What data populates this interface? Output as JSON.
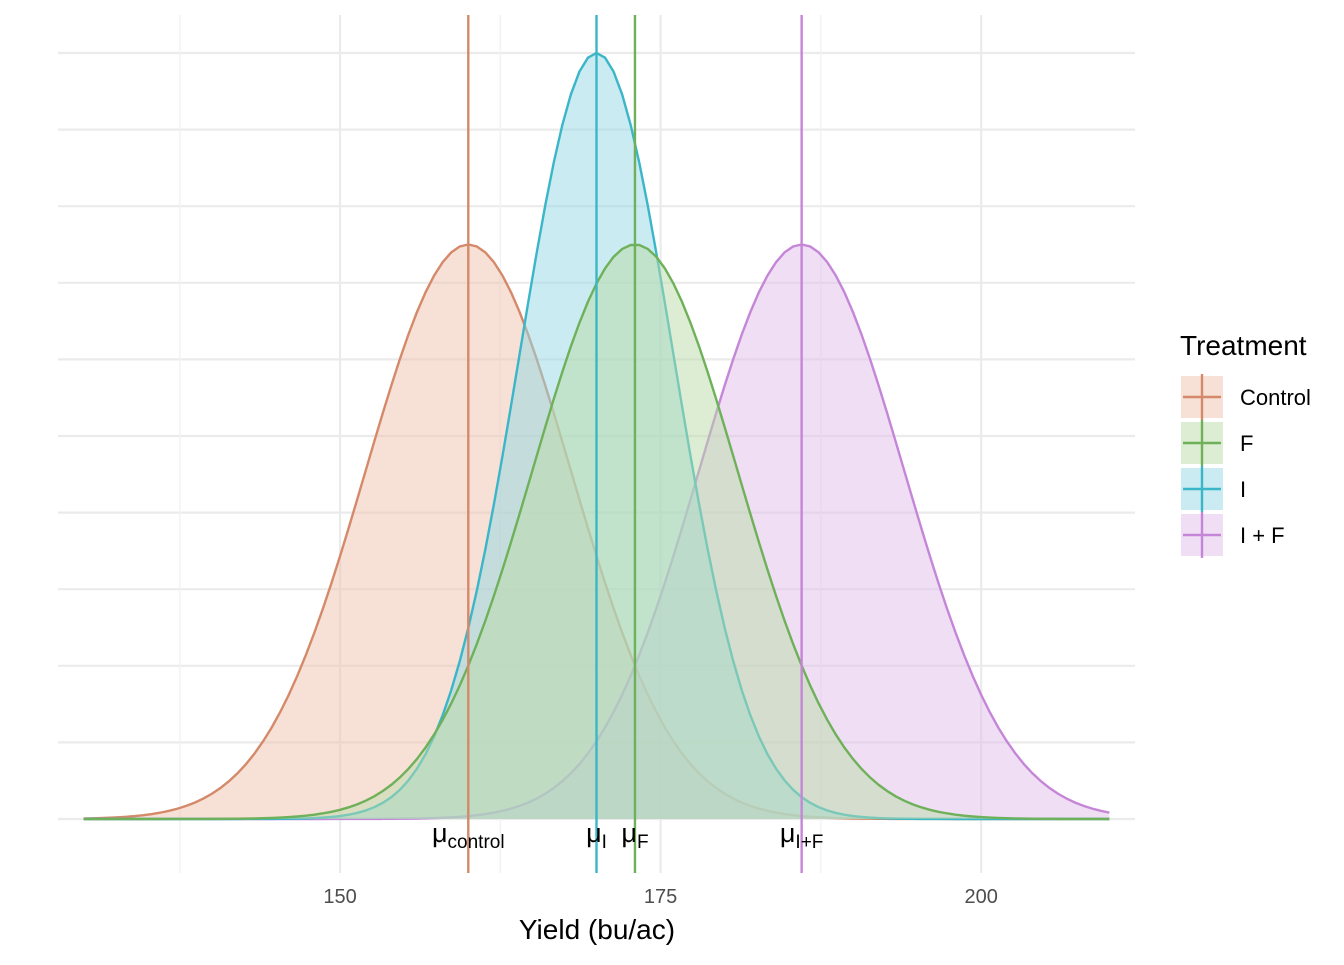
{
  "chart_data": {
    "type": "area",
    "title": "",
    "xlabel": "Yield (bu/ac)",
    "ylabel": "",
    "xlim": [
      128,
      212
    ],
    "x_ticks": [
      150,
      175,
      200
    ],
    "x_minor_ticks": [
      137.5,
      162.5,
      187.5,
      212.5
    ],
    "y_gridlines": 10,
    "grid": true,
    "legend": {
      "title": "Treatment",
      "position": "right"
    },
    "distribution": "normal",
    "x_range": [
      130,
      210
    ],
    "series": [
      {
        "name": "Control",
        "mean": 160,
        "sd": 8,
        "mu_label": "μ",
        "mu_sub": "control",
        "color": "#d48a6a",
        "fill": "#f0c2ad"
      },
      {
        "name": "F",
        "mean": 173,
        "sd": 8,
        "mu_label": "μ",
        "mu_sub": "F",
        "color": "#6fb05a",
        "fill": "#b9dba8"
      },
      {
        "name": "I",
        "mean": 170,
        "sd": 6,
        "mu_label": "μ",
        "mu_sub": "I",
        "color": "#3bb6c8",
        "fill": "#94d7e3"
      },
      {
        "name": "I + F",
        "mean": 186,
        "sd": 8,
        "mu_label": "μ",
        "mu_sub": "I+F",
        "color": "#c586d8",
        "fill": "#dfbde9"
      }
    ]
  }
}
